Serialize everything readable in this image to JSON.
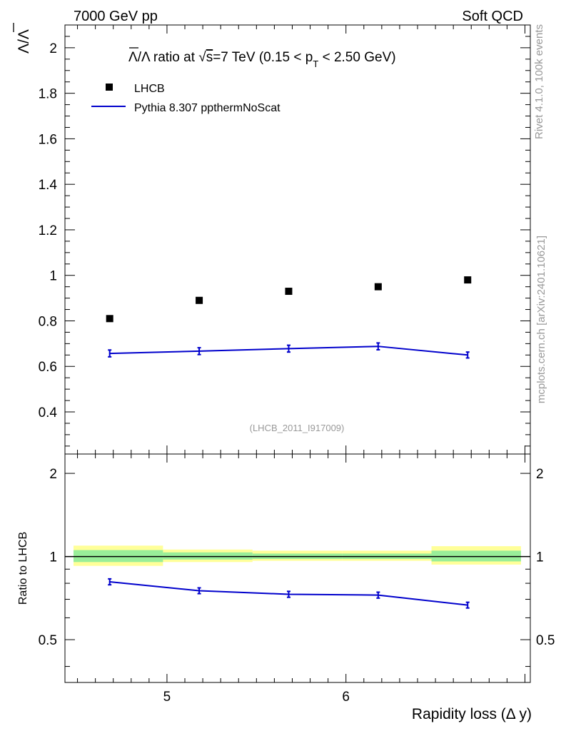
{
  "header": {
    "left": "7000 GeV pp",
    "right": "Soft QCD"
  },
  "side_labels": {
    "rivet": "Rivet 4.1.0,  100k events",
    "mcplots": "mcplots.cern.ch [arXiv:2401.10621]"
  },
  "colors": {
    "mc": "#0000cc",
    "data": "#000000",
    "band_outer": "#ffff99",
    "band_inner": "#99ee99",
    "watermark": "#999999"
  },
  "chart_data": [
    {
      "type": "scatter",
      "panel": "main",
      "title": "Λ̄/Λ ratio at √s=7 TeV (0.15 < pT < 2.50 GeV)",
      "title_parts": {
        "lead": "Λ/Λ ratio at ",
        "sqrt": "√",
        "s": "s",
        "energy": "=7 TeV (0.15 < p",
        "sub": "T",
        "tail": " < 2.50 GeV)"
      },
      "ylabel": "Λ/Λ",
      "analysis_id": "(LHCB_2011_I917009)",
      "xlim": [
        4.43,
        7.03
      ],
      "ylim": [
        0.215,
        2.1
      ],
      "y_ticks": [
        0.4,
        0.6,
        0.8,
        1,
        1.2,
        1.4,
        1.6,
        1.8,
        2
      ],
      "y_tick_labels": [
        "0.4",
        "0.6",
        "0.8",
        "1",
        "1.2",
        "1.4",
        "1.6",
        "1.8",
        "2"
      ],
      "series": [
        {
          "name": "LHCB",
          "style": "markers",
          "x": [
            4.68,
            5.18,
            5.68,
            6.18,
            6.68
          ],
          "y": [
            0.81,
            0.89,
            0.93,
            0.95,
            0.98
          ]
        },
        {
          "name": "Pythia 8.307 ppthermNoScat",
          "style": "line",
          "x": [
            4.68,
            5.18,
            5.68,
            6.18,
            6.68
          ],
          "y": [
            0.657,
            0.667,
            0.678,
            0.688,
            0.65
          ],
          "yerr": [
            0.015,
            0.015,
            0.015,
            0.015,
            0.013
          ]
        }
      ]
    },
    {
      "type": "line",
      "panel": "ratio",
      "ylabel": "Ratio to LHCB",
      "xlabel": "Rapidity loss (Δ y)",
      "xlim": [
        4.43,
        7.03
      ],
      "ylim": [
        0.35,
        2.35
      ],
      "y_ticks": [
        0.5,
        1,
        2
      ],
      "y_tick_labels": [
        "0.5",
        "1",
        "2"
      ],
      "x_ticks": [
        5,
        6
      ],
      "x_tick_labels": [
        "5",
        "6"
      ],
      "reference": 1,
      "bands": {
        "x_edges": [
          4.43,
          4.93,
          5.43,
          5.93,
          6.43,
          6.93
        ],
        "outer": [
          [
            0.925,
            1.095
          ],
          [
            0.955,
            1.06
          ],
          [
            0.965,
            1.05
          ],
          [
            0.965,
            1.05
          ],
          [
            0.935,
            1.09
          ]
        ],
        "inner": [
          [
            0.955,
            1.055
          ],
          [
            0.975,
            1.035
          ],
          [
            0.98,
            1.025
          ],
          [
            0.98,
            1.025
          ],
          [
            0.96,
            1.05
          ]
        ]
      },
      "series": [
        {
          "name": "Pythia 8.307 ppthermNoScat",
          "x": [
            4.68,
            5.18,
            5.68,
            6.18,
            6.68
          ],
          "y": [
            0.81,
            0.752,
            0.73,
            0.725,
            0.667
          ],
          "yerr": [
            0.02,
            0.018,
            0.018,
            0.018,
            0.016
          ]
        }
      ]
    }
  ]
}
